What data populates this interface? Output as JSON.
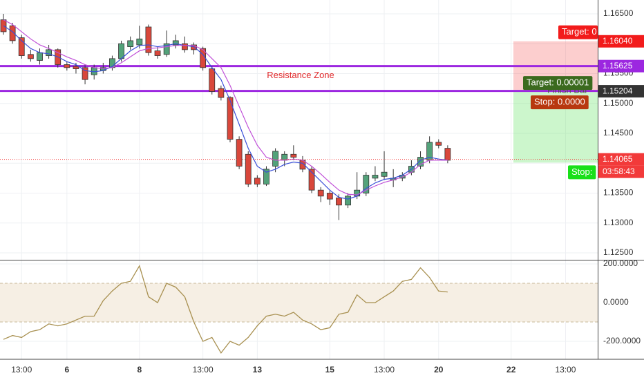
{
  "chart_data": [
    {
      "type": "candlestick",
      "categories": [
        null,
        null,
        "13:00",
        null,
        null,
        null,
        null,
        "6",
        null,
        null,
        null,
        null,
        null,
        null,
        null,
        "8",
        null,
        null,
        null,
        null,
        null,
        null,
        "13:00",
        null,
        null,
        null,
        null,
        null,
        "13",
        null,
        null,
        null,
        null,
        null,
        null,
        null,
        "15",
        null,
        null,
        null,
        null,
        null,
        "13:00",
        null,
        null,
        null,
        null,
        null,
        "20",
        null,
        null,
        null,
        null,
        null,
        null,
        null,
        "22",
        null,
        null,
        null,
        null,
        null,
        "13:00"
      ],
      "open": [
        1.164,
        1.163,
        1.161,
        1.1582,
        1.1572,
        1.158,
        1.159,
        1.1565,
        1.1562,
        1.156,
        1.1548,
        1.1555,
        1.156,
        1.1575,
        1.1595,
        1.1598,
        1.1628,
        1.1588,
        1.1582,
        1.1598,
        1.16,
        1.1598,
        1.1592,
        1.1558,
        1.1525,
        1.151,
        1.144,
        1.1415,
        1.1375,
        1.1365,
        1.1395,
        1.1405,
        1.1415,
        1.1405,
        1.139,
        1.1355,
        1.135,
        1.1342,
        1.133,
        1.1345,
        1.135,
        1.1375,
        1.1378,
        1.1372,
        1.1375,
        1.1385,
        1.1395,
        1.1405,
        1.1435,
        1.1425,
        null,
        null,
        null,
        null,
        null,
        null,
        null,
        null,
        null,
        null,
        null,
        null,
        null
      ],
      "high": [
        1.165,
        1.1635,
        1.1615,
        1.159,
        1.1592,
        1.1598,
        1.1592,
        1.157,
        1.1568,
        1.1565,
        1.1565,
        1.1568,
        1.158,
        1.1605,
        1.1612,
        1.163,
        1.1632,
        1.1595,
        1.1622,
        1.1615,
        1.1612,
        1.1602,
        1.1595,
        1.1562,
        1.153,
        1.1512,
        1.1445,
        1.142,
        1.138,
        1.1395,
        1.1425,
        1.142,
        1.143,
        1.1412,
        1.1395,
        1.136,
        1.1355,
        1.1348,
        1.135,
        1.1385,
        1.1385,
        1.1395,
        1.142,
        1.139,
        1.1385,
        1.1405,
        1.142,
        1.1445,
        1.144,
        1.143,
        null,
        null,
        null,
        null,
        null,
        null,
        null,
        null,
        null,
        null,
        null,
        null,
        null
      ],
      "low": [
        1.1615,
        1.16,
        1.1575,
        1.157,
        1.1565,
        1.1575,
        1.156,
        1.1555,
        1.155,
        1.1532,
        1.154,
        1.155,
        1.1555,
        1.157,
        1.159,
        1.1592,
        1.158,
        1.1575,
        1.1578,
        1.1592,
        1.1585,
        1.1582,
        1.1555,
        1.1515,
        1.1505,
        1.1435,
        1.139,
        1.136,
        1.136,
        1.1362,
        1.1385,
        1.1395,
        1.1405,
        1.1385,
        1.135,
        1.1335,
        1.133,
        1.1305,
        1.1325,
        1.134,
        1.1345,
        1.137,
        1.1372,
        1.136,
        1.137,
        1.138,
        1.139,
        1.14,
        1.1425,
        1.14,
        null,
        null,
        null,
        null,
        null,
        null,
        null,
        null,
        null,
        null,
        null,
        null,
        null
      ],
      "close": [
        1.162,
        1.1605,
        1.158,
        1.1575,
        1.1585,
        1.159,
        1.1565,
        1.156,
        1.1558,
        1.154,
        1.156,
        1.156,
        1.1575,
        1.16,
        1.1605,
        1.1608,
        1.1585,
        1.158,
        1.16,
        1.1605,
        1.159,
        1.159,
        1.156,
        1.152,
        1.151,
        1.144,
        1.1395,
        1.1365,
        1.1365,
        1.139,
        1.142,
        1.1415,
        1.141,
        1.139,
        1.1355,
        1.1345,
        1.134,
        1.133,
        1.1345,
        1.1355,
        1.138,
        1.138,
        1.1385,
        1.1375,
        1.138,
        1.1395,
        1.141,
        1.1435,
        1.143,
        1.1405,
        null,
        null,
        null,
        null,
        null,
        null,
        null,
        null,
        null,
        null,
        null,
        null,
        null
      ],
      "up_color": "#53a27a",
      "down_color": "#d9473b",
      "moving_averages": [
        {
          "color": "#3a4fd8",
          "values": [
            1.163,
            1.162,
            1.1605,
            1.1592,
            1.1585,
            1.1583,
            1.1578,
            1.157,
            1.1565,
            1.1555,
            1.1553,
            1.1555,
            1.1562,
            1.1575,
            1.1588,
            1.1597,
            1.1598,
            1.1595,
            1.1597,
            1.16,
            1.1597,
            1.1595,
            1.1582,
            1.156,
            1.154,
            1.1505,
            1.1465,
            1.1425,
            1.1395,
            1.1385,
            1.139,
            1.1398,
            1.1402,
            1.14,
            1.1385,
            1.137,
            1.1355,
            1.1343,
            1.134,
            1.1345,
            1.1358,
            1.1367,
            1.1373,
            1.1375,
            1.138,
            1.139,
            1.1405,
            1.141,
            1.1407,
            1.1405,
            null,
            null,
            null,
            null,
            null,
            null,
            null,
            null,
            null,
            null,
            null,
            null,
            null
          ]
        },
        {
          "color": "#c050d8",
          "values": [
            1.164,
            1.1632,
            1.162,
            1.1608,
            1.1598,
            1.1592,
            1.1585,
            1.1578,
            1.1572,
            1.1565,
            1.156,
            1.1558,
            1.156,
            1.1568,
            1.1578,
            1.1588,
            1.1592,
            1.1593,
            1.1595,
            1.1597,
            1.1597,
            1.1597,
            1.159,
            1.1575,
            1.156,
            1.153,
            1.1495,
            1.146,
            1.143,
            1.141,
            1.1405,
            1.1405,
            1.1407,
            1.1405,
            1.1395,
            1.1382,
            1.1368,
            1.1355,
            1.1348,
            1.1347,
            1.1355,
            1.1362,
            1.1368,
            1.1372,
            1.1377,
            1.1385,
            1.1398,
            1.1405,
            1.1405,
            1.1405,
            null,
            null,
            null,
            null,
            null,
            null,
            null,
            null,
            null,
            null,
            null,
            null,
            null
          ]
        }
      ],
      "ylim": [
        1.12396,
        1.16731
      ],
      "yticks": [
        {
          "value": 1.125,
          "label": "1.12500"
        },
        {
          "value": 1.13,
          "label": "1.13000"
        },
        {
          "value": 1.135,
          "label": "1.13500"
        },
        {
          "value": 1.14,
          "label": "1.14000"
        },
        {
          "value": 1.145,
          "label": "1.14500"
        },
        {
          "value": 1.15,
          "label": "1.15000"
        },
        {
          "value": 1.155,
          "label": "1.15500"
        },
        {
          "value": 1.16,
          "label": "1.16000"
        },
        {
          "value": 1.165,
          "label": "1.16500"
        }
      ],
      "grid": true,
      "resistance": {
        "top": {
          "value": 1.15625,
          "label": "1.15625"
        },
        "bottom": 1.1521,
        "label": "Resistance Zone",
        "color": "#9c27e0"
      },
      "last_price": {
        "value": 1.14065,
        "label": "1.14065"
      },
      "countdown": "03:58:43",
      "position": {
        "stop": {
          "value": 1.1604,
          "label": "1.16040"
        },
        "entry": {
          "value": 1.15204,
          "label": "1.15204"
        },
        "target": 1.1401,
        "tags": [
          "Finish Bar",
          "Target: 0",
          "Target: 0.00001",
          "Stop: 0.0000",
          "Stop:"
        ]
      }
    },
    {
      "type": "line",
      "values": [
        -190,
        -170,
        -180,
        -150,
        -140,
        -110,
        -120,
        -110,
        -90,
        -70,
        -70,
        10,
        60,
        100,
        110,
        190,
        30,
        0,
        100,
        80,
        30,
        -100,
        -200,
        -180,
        -260,
        -200,
        -220,
        -180,
        -120,
        -70,
        -60,
        -70,
        -50,
        -90,
        -110,
        -140,
        -130,
        -60,
        -50,
        40,
        0,
        0,
        30,
        60,
        110,
        120,
        180,
        130,
        60,
        55,
        null,
        null,
        null,
        null,
        null,
        null,
        null,
        null,
        null,
        null,
        null,
        null,
        null
      ],
      "color": "#a89050",
      "ylim": [
        -292.9,
        214.3
      ],
      "yticks": [
        {
          "value": -200,
          "label": "-200.0000"
        },
        {
          "value": 0,
          "label": "0.0000"
        },
        {
          "value": 200,
          "label": "200.0000"
        }
      ],
      "levels": [
        -100,
        100
      ]
    }
  ]
}
